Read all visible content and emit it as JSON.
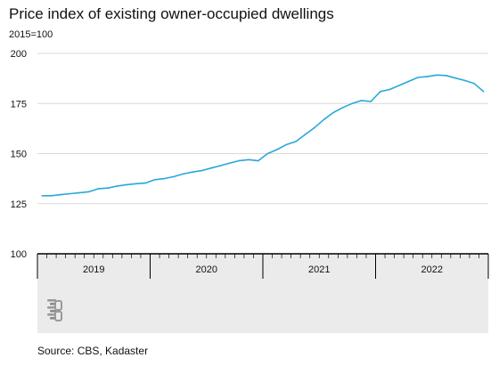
{
  "title": "Price index of existing owner-occupied dwellings",
  "unit_label": "2015=100",
  "source": "Source: CBS, Kadaster",
  "colors": {
    "line": "#29a8d8",
    "grid": "#d9d9d9",
    "axis_band": "#ebebeb",
    "axis_line": "#000000"
  },
  "chart_data": {
    "type": "line",
    "title": "Price index of existing owner-occupied dwellings",
    "ylabel": "2015=100",
    "xlabel": "",
    "ylim": [
      100,
      200
    ],
    "yticks": [
      100,
      125,
      150,
      175,
      200
    ],
    "grid": true,
    "x_years": [
      "2019",
      "2020",
      "2021",
      "2022"
    ],
    "x": [
      "2019-01",
      "2019-02",
      "2019-03",
      "2019-04",
      "2019-05",
      "2019-06",
      "2019-07",
      "2019-08",
      "2019-09",
      "2019-10",
      "2019-11",
      "2019-12",
      "2020-01",
      "2020-02",
      "2020-03",
      "2020-04",
      "2020-05",
      "2020-06",
      "2020-07",
      "2020-08",
      "2020-09",
      "2020-10",
      "2020-11",
      "2020-12",
      "2021-01",
      "2021-02",
      "2021-03",
      "2021-04",
      "2021-05",
      "2021-06",
      "2021-07",
      "2021-08",
      "2021-09",
      "2021-10",
      "2021-11",
      "2021-12",
      "2022-01",
      "2022-02",
      "2022-03",
      "2022-04",
      "2022-05",
      "2022-06",
      "2022-07",
      "2022-08",
      "2022-09",
      "2022-10",
      "2022-11",
      "2022-12"
    ],
    "series": [
      {
        "values": [
          129.0,
          129.0,
          129.5,
          130.0,
          130.5,
          131.0,
          132.5,
          132.8,
          133.8,
          134.5,
          135.0,
          135.3,
          137.0,
          137.5,
          138.5,
          139.8,
          140.8,
          141.5,
          142.8,
          144.0,
          145.3,
          146.5,
          147.0,
          146.4,
          150.0,
          152.0,
          154.5,
          156.0,
          159.5,
          163.0,
          167.0,
          170.5,
          173.0,
          175.0,
          176.5,
          176.0,
          181.0,
          182.0,
          184.0,
          186.0,
          188.0,
          188.5,
          189.2,
          189.0,
          187.7,
          186.5,
          185.0,
          181.0
        ]
      }
    ]
  }
}
